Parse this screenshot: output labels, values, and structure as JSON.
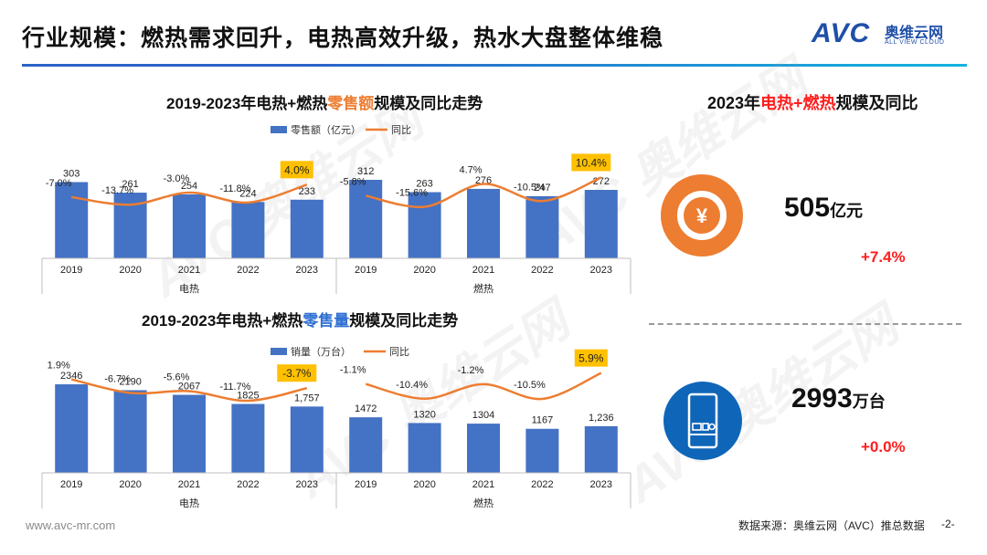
{
  "header": {
    "title": "行业规模：燃热需求回升，电热高效升级，热水大盘整体维稳",
    "logo_avc": "AVC",
    "logo_cn": "奥维云网",
    "logo_en": "ALL VIEW CLOUD"
  },
  "watermark": {
    "text": "AVC 奥维云网"
  },
  "charts": {
    "retail_value": {
      "title_prefix": "2019-2023年电热+燃热",
      "title_highlight": "零售额",
      "title_suffix": "规模及同比走势",
      "legend_bar": "零售额（亿元）",
      "legend_line": "同比"
    },
    "retail_volume": {
      "title_prefix": "2019-2023年电热+燃热",
      "title_highlight": "零售量",
      "title_suffix": "规模及同比走势",
      "legend_bar": "销量（万台）",
      "legend_line": "同比"
    }
  },
  "chart_data": [
    {
      "type": "bar",
      "title": "2019-2023年电热+燃热零售额规模及同比走势",
      "categories": [
        "2019",
        "2020",
        "2021",
        "2022",
        "2023",
        "2019",
        "2020",
        "2021",
        "2022",
        "2023"
      ],
      "groups": [
        {
          "name": "电热",
          "categories": [
            "2019",
            "2020",
            "2021",
            "2022",
            "2023"
          ]
        },
        {
          "name": "燃热",
          "categories": [
            "2019",
            "2020",
            "2021",
            "2022",
            "2023"
          ]
        }
      ],
      "series": [
        {
          "name": "零售额（亿元）",
          "type": "bar",
          "values": [
            303,
            261,
            254,
            224,
            233,
            312,
            263,
            276,
            247,
            272
          ],
          "labels": [
            "303",
            "261",
            "254",
            "224",
            "233",
            "312",
            "263",
            "276",
            "247",
            "272"
          ]
        },
        {
          "name": "同比",
          "type": "line",
          "values": [
            -7.0,
            -13.7,
            -3.0,
            -11.8,
            4.0,
            -5.8,
            -15.6,
            4.7,
            -10.5,
            10.4
          ],
          "labels": [
            "-7.0%",
            "-13.7%",
            "-3.0%",
            "-11.8%",
            "4.0%",
            "-5.8%",
            "-15.6%",
            "4.7%",
            "-10.5%",
            "10.4%"
          ]
        }
      ],
      "highlighted_labels": [
        "4.0%",
        "10.4%"
      ],
      "ylim": [
        0,
        400
      ],
      "yoy_range": [
        -20,
        14
      ]
    },
    {
      "type": "bar",
      "title": "2019-2023年电热+燃热零售量规模及同比走势",
      "categories": [
        "2019",
        "2020",
        "2021",
        "2022",
        "2023",
        "2019",
        "2020",
        "2021",
        "2022",
        "2023"
      ],
      "groups": [
        {
          "name": "电热",
          "categories": [
            "2019",
            "2020",
            "2021",
            "2022",
            "2023"
          ]
        },
        {
          "name": "燃热",
          "categories": [
            "2019",
            "2020",
            "2021",
            "2022",
            "2023"
          ]
        }
      ],
      "series": [
        {
          "name": "销量（万台）",
          "type": "bar",
          "values": [
            2346,
            2190,
            2067,
            1825,
            1757,
            1472,
            1320,
            1304,
            1167,
            1236
          ],
          "labels": [
            "2346",
            "2190",
            "2067",
            "1825",
            "1,757",
            "1472",
            "1320",
            "1304",
            "1167",
            "1,236"
          ]
        },
        {
          "name": "同比",
          "type": "line",
          "values": [
            1.9,
            -6.7,
            -5.6,
            -11.7,
            -3.7,
            -1.1,
            -10.4,
            -1.2,
            -10.5,
            5.9
          ],
          "labels": [
            "1.9%",
            "-6.7%",
            "-5.6%",
            "-11.7%",
            "-3.7%",
            "-1.1%",
            "-10.4%",
            "-1.2%",
            "-10.5%",
            "5.9%"
          ]
        }
      ],
      "highlighted_labels": [
        "-3.7%",
        "5.9%"
      ],
      "ylim": [
        0,
        3000
      ],
      "yoy_range": [
        -14,
        8
      ]
    }
  ],
  "summary": {
    "title_year": "2023年",
    "title_highlight": "电热+燃热",
    "title_suffix": "规模及同比",
    "value_kpi": {
      "value": "505",
      "unit": "亿元",
      "yoy": "+7.4%",
      "icon": "yuan-icon"
    },
    "volume_kpi": {
      "value": "2993",
      "unit": "万台",
      "yoy": "+0.0%",
      "icon": "water-heater-icon"
    }
  },
  "colors": {
    "bar": "#4472c4",
    "line": "#ed7d31",
    "highlight": "#ffc000",
    "accent_red": "#ff1e1e",
    "kpi_blue": "#0f66b8"
  },
  "footer": {
    "url": "www.avc-mr.com",
    "source": "数据来源：奥维云网（AVC）推总数据",
    "page": "-2-"
  }
}
